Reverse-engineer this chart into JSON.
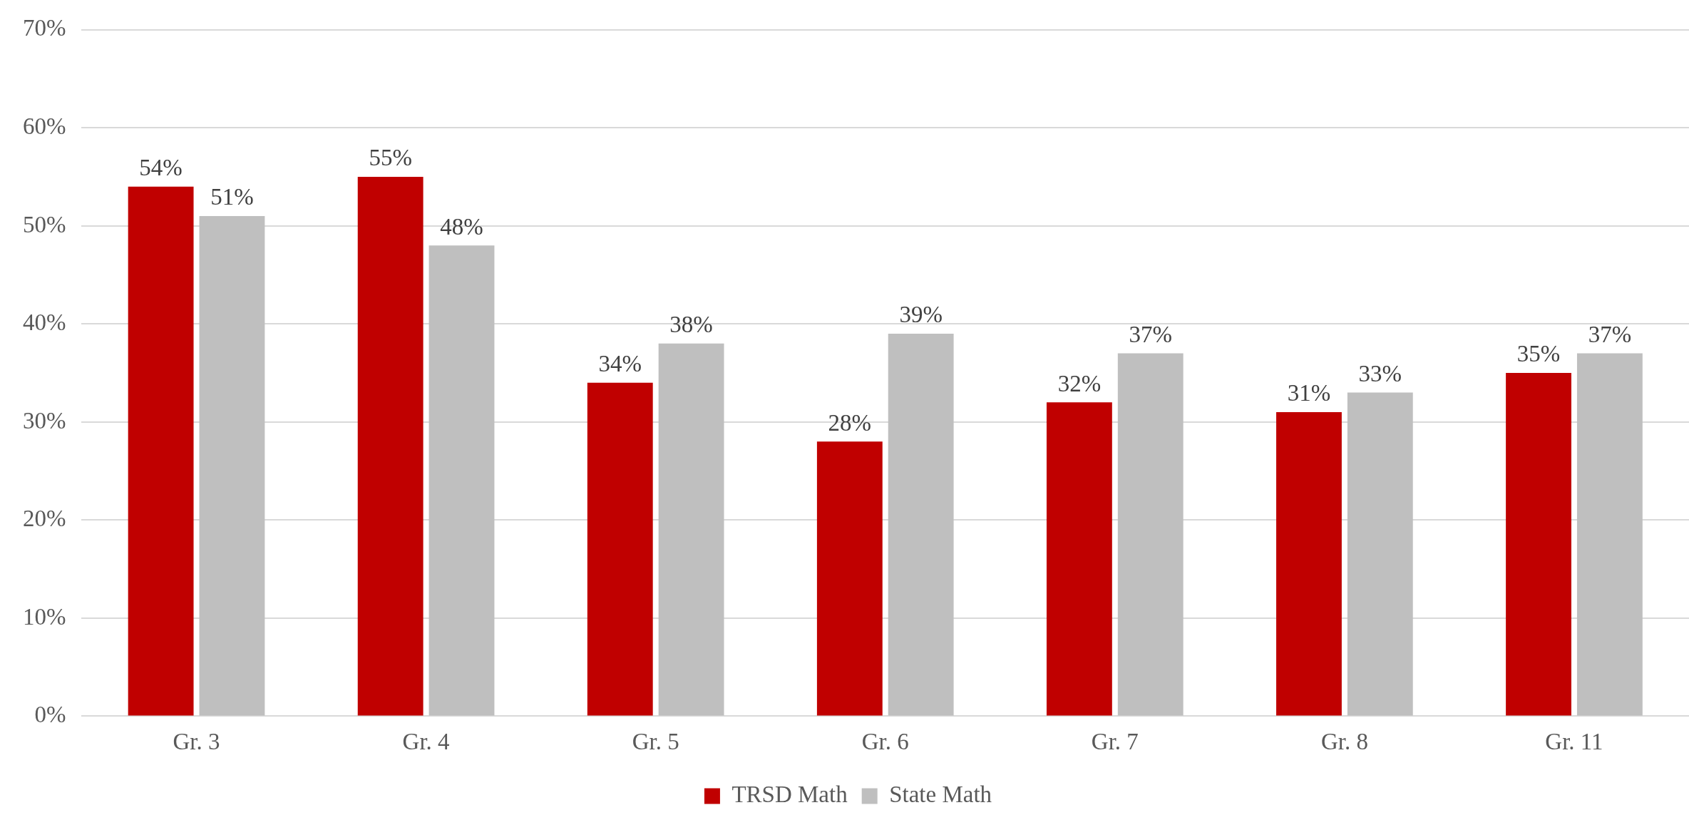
{
  "chart_data": {
    "type": "bar",
    "categories": [
      "Gr. 3",
      "Gr. 4",
      "Gr. 5",
      "Gr. 6",
      "Gr. 7",
      "Gr. 8",
      "Gr. 11"
    ],
    "series": [
      {
        "name": "TRSD Math",
        "color": "#c00000",
        "values": [
          54,
          55,
          34,
          28,
          32,
          31,
          35
        ],
        "value_labels": [
          "54%",
          "55%",
          "34%",
          "28%",
          "32%",
          "31%",
          "35%"
        ]
      },
      {
        "name": "State Math",
        "color": "#bfbfbf",
        "values": [
          51,
          48,
          38,
          39,
          37,
          33,
          37
        ],
        "value_labels": [
          "51%",
          "48%",
          "38%",
          "39%",
          "37%",
          "33%",
          "37%"
        ]
      }
    ],
    "ylim": [
      0,
      70
    ],
    "yticks": [
      {
        "value": 0,
        "label": "0%"
      },
      {
        "value": 10,
        "label": "10%"
      },
      {
        "value": 20,
        "label": "20%"
      },
      {
        "value": 30,
        "label": "30%"
      },
      {
        "value": 40,
        "label": "40%"
      },
      {
        "value": 50,
        "label": "50%"
      },
      {
        "value": 60,
        "label": "60%"
      },
      {
        "value": 70,
        "label": "70%"
      }
    ],
    "grid": "y",
    "legend": "bottom"
  }
}
